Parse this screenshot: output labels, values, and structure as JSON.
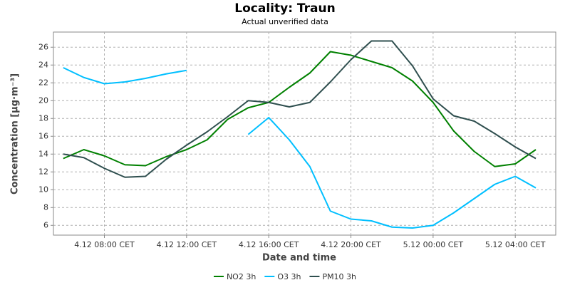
{
  "chart_data": {
    "type": "line",
    "title": "Locality: Traun",
    "subtitle": "Actual unverified data",
    "x_label": "Date and time",
    "y_label": "Concentration [µg·m⁻³]",
    "x": [
      6,
      7,
      8,
      9,
      10,
      11,
      12,
      13,
      14,
      15,
      16,
      17,
      18,
      19,
      20,
      21,
      22,
      23,
      24,
      25,
      26,
      27,
      28,
      29
    ],
    "series": [
      {
        "name": "NO2 3h",
        "color": "#008000",
        "values": [
          13.5,
          14.5,
          13.8,
          12.8,
          12.7,
          13.7,
          14.5,
          15.6,
          17.9,
          19.2,
          19.8,
          21.5,
          23.1,
          25.5,
          25.1,
          24.4,
          23.7,
          22.2,
          19.8,
          16.6,
          14.3,
          12.6,
          12.9,
          14.5
        ]
      },
      {
        "name": "O3 3h",
        "color": "#00bfff",
        "values": [
          23.7,
          22.6,
          21.9,
          22.1,
          22.5,
          23.0,
          23.4,
          null,
          null,
          16.2,
          18.1,
          15.6,
          12.6,
          7.6,
          6.7,
          6.5,
          5.8,
          5.7,
          6.0,
          7.4,
          9.0,
          10.6,
          11.5,
          10.2
        ]
      },
      {
        "name": "PM10 3h",
        "color": "#2f4f4f",
        "values": [
          14.0,
          13.6,
          12.4,
          11.4,
          11.5,
          13.4,
          15.0,
          16.5,
          18.2,
          20.0,
          19.8,
          19.3,
          19.8,
          22.1,
          24.6,
          26.7,
          26.7,
          23.9,
          20.2,
          18.3,
          17.7,
          16.3,
          14.8,
          13.5
        ]
      }
    ],
    "xlim": [
      5.52,
      29.97
    ],
    "ylim": [
      4.9,
      27.7
    ],
    "xticks": [
      {
        "value": 8,
        "label": "4.12 08:00 CET"
      },
      {
        "value": 12,
        "label": "4.12 12:00 CET"
      },
      {
        "value": 16,
        "label": "4.12 16:00 CET"
      },
      {
        "value": 20,
        "label": "4.12 20:00 CET"
      },
      {
        "value": 24,
        "label": "5.12 00:00 CET"
      },
      {
        "value": 28,
        "label": "5.12 04:00 CET"
      }
    ],
    "yticks": [
      6,
      8,
      10,
      12,
      14,
      16,
      18,
      20,
      22,
      24,
      26
    ],
    "grid": true,
    "legend": "bottom"
  }
}
